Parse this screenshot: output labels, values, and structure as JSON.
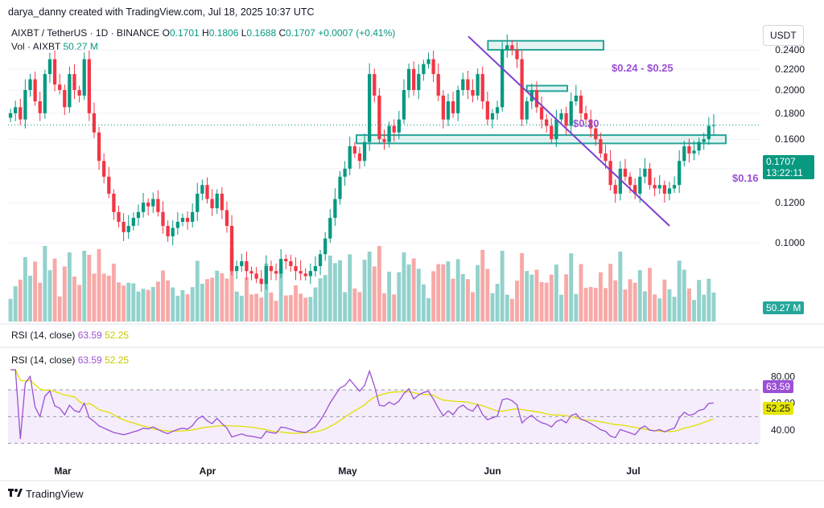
{
  "header": {
    "attribution": "darya_danny created with TradingView.com, Jul 18, 2025 10:37 UTC"
  },
  "symbol": {
    "name": "AIXBT / TetherUS · 1D · BINANCE",
    "o_label": "O",
    "o": "0.1701",
    "h_label": "H",
    "h": "0.1806",
    "l_label": "L",
    "l": "0.1688",
    "c_label": "C",
    "c": "0.1707",
    "change": "+0.0007 (+0.41%)"
  },
  "volume": {
    "label": "Vol · AIXBT",
    "value": "50.27 M"
  },
  "currency_button": "USDT",
  "price_tag": {
    "price": "0.1707",
    "countdown": "13:22:11"
  },
  "volume_tag": "50.27 M",
  "zones": {
    "top": "$0.24 - $0.25",
    "mid": "$0.20",
    "low": "$0.16"
  },
  "rsi_legend_1": {
    "label": "RSI (14, close)",
    "rsi": "63.59",
    "ma": "52.25"
  },
  "rsi_legend_2": {
    "label": "RSI (14, close)",
    "rsi": "63.59",
    "ma": "52.25"
  },
  "rsi_tags": {
    "rsi": "63.59",
    "ma": "52.25"
  },
  "brand": "TradingView",
  "colors": {
    "up": "#089981",
    "down": "#f23645",
    "trendline": "#7e3fcf",
    "zone_border": "#26a69a",
    "rsi": "#9c4fd6",
    "rsi_ma": "#e0e000"
  },
  "chart_data": [
    {
      "type": "candlestick",
      "title": "AIXBT / TetherUS · 1D · BINANCE",
      "x_ticks": [
        "Mar",
        "Apr",
        "May",
        "Jun",
        "Jul"
      ],
      "y_ticks": [
        "0.1000",
        "0.1200",
        "0.1400",
        "0.1600",
        "0.1800",
        "0.2000",
        "0.2200",
        "0.2400"
      ],
      "ylim": [
        0.07,
        0.26
      ],
      "scale": "log",
      "close": [
        0.18,
        0.185,
        0.175,
        0.2,
        0.21,
        0.19,
        0.18,
        0.215,
        0.23,
        0.205,
        0.2,
        0.185,
        0.215,
        0.2,
        0.195,
        0.23,
        0.18,
        0.165,
        0.145,
        0.135,
        0.125,
        0.115,
        0.11,
        0.105,
        0.108,
        0.112,
        0.115,
        0.12,
        0.118,
        0.122,
        0.115,
        0.108,
        0.103,
        0.107,
        0.11,
        0.112,
        0.11,
        0.115,
        0.125,
        0.13,
        0.122,
        0.117,
        0.125,
        0.116,
        0.108,
        0.088,
        0.09,
        0.092,
        0.088,
        0.087,
        0.085,
        0.083,
        0.09,
        0.088,
        0.087,
        0.093,
        0.092,
        0.09,
        0.088,
        0.087,
        0.086,
        0.088,
        0.09,
        0.095,
        0.102,
        0.112,
        0.122,
        0.135,
        0.14,
        0.155,
        0.15,
        0.145,
        0.158,
        0.215,
        0.195,
        0.16,
        0.158,
        0.17,
        0.165,
        0.175,
        0.2,
        0.22,
        0.2,
        0.215,
        0.225,
        0.23,
        0.215,
        0.195,
        0.175,
        0.19,
        0.18,
        0.2,
        0.21,
        0.2,
        0.195,
        0.215,
        0.19,
        0.175,
        0.18,
        0.185,
        0.24,
        0.245,
        0.24,
        0.23,
        0.175,
        0.19,
        0.2,
        0.185,
        0.175,
        0.17,
        0.16,
        0.175,
        0.18,
        0.17,
        0.19,
        0.195,
        0.18,
        0.175,
        0.168,
        0.16,
        0.15,
        0.145,
        0.13,
        0.125,
        0.14,
        0.135,
        0.13,
        0.125,
        0.135,
        0.14,
        0.13,
        0.128,
        0.13,
        0.125,
        0.128,
        0.13,
        0.145,
        0.155,
        0.15,
        0.152,
        0.158,
        0.16,
        0.17,
        0.1707
      ],
      "volume_unit": "M",
      "last_volume": 50.27
    },
    {
      "type": "line",
      "title": "RSI (14, close)",
      "y_ticks": [
        "40.00",
        "60.00",
        "80.00"
      ],
      "ylim": [
        25,
        85
      ],
      "bands": [
        30,
        50,
        70
      ],
      "series": [
        {
          "name": "RSI",
          "last": 63.59
        },
        {
          "name": "MA",
          "last": 52.25
        }
      ]
    }
  ]
}
